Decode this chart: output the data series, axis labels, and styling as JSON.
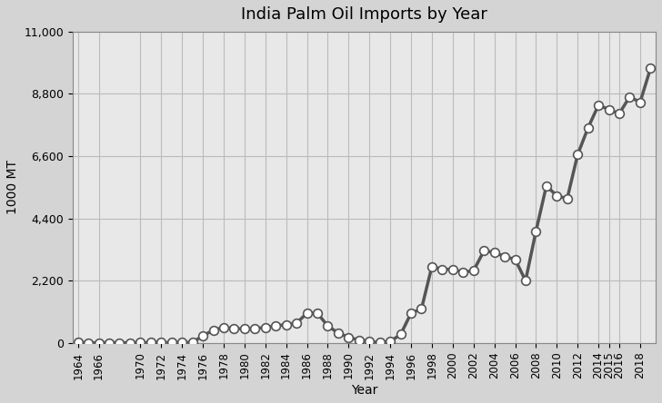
{
  "title": "India Palm Oil Imports by Year",
  "xlabel": "Year",
  "ylabel": "1000 MT",
  "background_color": "#d4d4d4",
  "plot_background_color": "#e8e8e8",
  "line_color": "#555555",
  "marker_color": "#ffffff",
  "marker_edge_color": "#555555",
  "ylim": [
    0,
    11000
  ],
  "yticks": [
    0,
    2200,
    4400,
    6600,
    8800,
    11000
  ],
  "ytick_labels": [
    "0",
    "2,200",
    "4,400",
    "6,600",
    "8,800",
    "11,000"
  ],
  "years": [
    1964,
    1965,
    1966,
    1967,
    1968,
    1969,
    1970,
    1971,
    1972,
    1973,
    1974,
    1975,
    1976,
    1977,
    1978,
    1979,
    1980,
    1981,
    1982,
    1983,
    1984,
    1985,
    1986,
    1987,
    1988,
    1989,
    1990,
    1991,
    1992,
    1993,
    1994,
    1995,
    1996,
    1997,
    1998,
    1999,
    2000,
    2001,
    2002,
    2003,
    2004,
    2005,
    2006,
    2007,
    2008,
    2009,
    2010,
    2011,
    2012,
    2013,
    2014,
    2015,
    2016,
    2017,
    2018,
    2019
  ],
  "values": [
    10,
    5,
    5,
    5,
    5,
    5,
    10,
    10,
    10,
    10,
    10,
    20,
    250,
    450,
    550,
    500,
    500,
    500,
    550,
    600,
    650,
    700,
    1050,
    1050,
    600,
    350,
    200,
    100,
    50,
    10,
    50,
    300,
    1050,
    1200,
    2700,
    2600,
    2600,
    2500,
    2550,
    3250,
    3200,
    3050,
    2950,
    2200,
    3950,
    5550,
    5200,
    5100,
    6650,
    7600,
    8400,
    8250,
    8100,
    8700,
    8500,
    9700
  ],
  "xtick_years": [
    1964,
    1966,
    1970,
    1972,
    1974,
    1976,
    1978,
    1980,
    1982,
    1984,
    1986,
    1988,
    1990,
    1992,
    1994,
    1996,
    1998,
    2000,
    2002,
    2004,
    2006,
    2008,
    2010,
    2012,
    2014,
    2015,
    2016,
    2018
  ],
  "grid_color": "#bbbbbb",
  "line_width": 2.5,
  "marker_size": 7
}
